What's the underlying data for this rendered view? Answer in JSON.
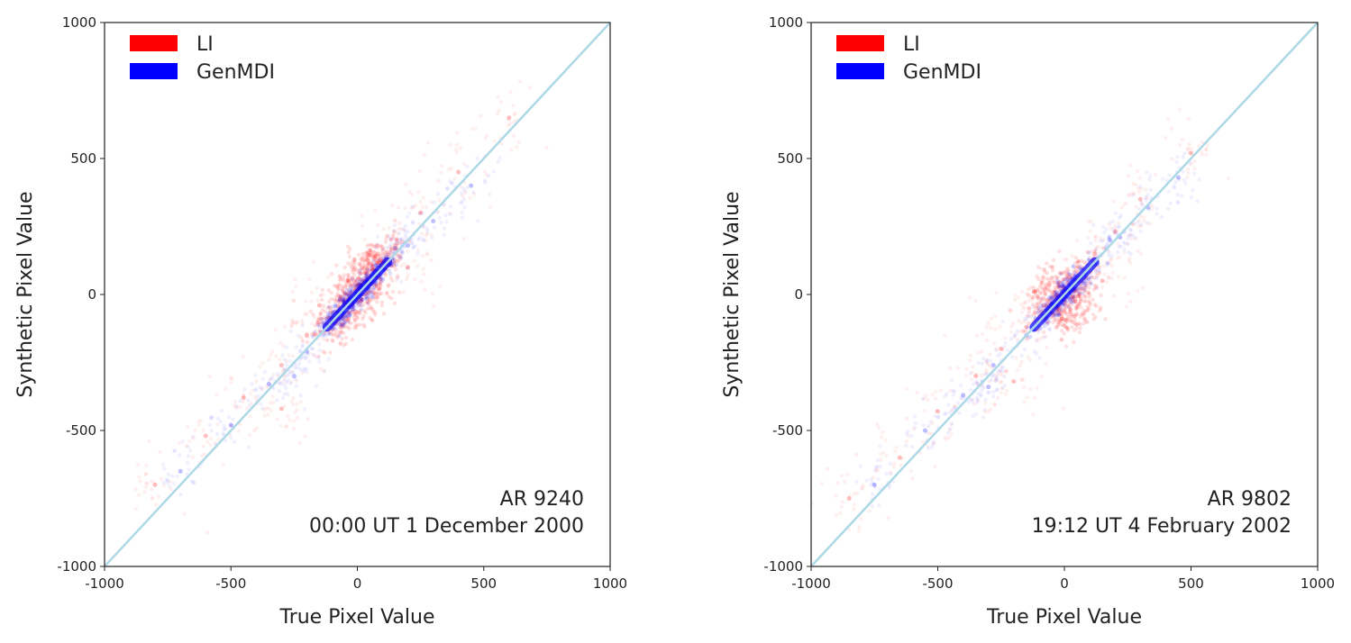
{
  "chart_data": [
    {
      "type": "scatter",
      "xlabel": "True Pixel Value",
      "ylabel": "Synthetic Pixel Value",
      "xlim": [
        -1000,
        1000
      ],
      "ylim": [
        -1000,
        1000
      ],
      "xticks": [
        "-1000",
        "-500",
        "0",
        "500",
        "1000"
      ],
      "yticks": [
        "-1000",
        "-500",
        "0",
        "500",
        "1000"
      ],
      "grid": false,
      "legend_position": "top-left",
      "annotation": [
        "AR 9240",
        "00:00 UT 1 December 2000"
      ],
      "reference_line": {
        "from": [
          -1000,
          -1000
        ],
        "to": [
          1000,
          1000
        ],
        "color": "#add8e6"
      },
      "series": [
        {
          "name": "LI",
          "color": "#ff0000",
          "points": [
            [
              -800,
              -700
            ],
            [
              -600,
              -520
            ],
            [
              -450,
              -380
            ],
            [
              -300,
              -260
            ],
            [
              -200,
              -150
            ],
            [
              -100,
              -90
            ],
            [
              -50,
              -30
            ],
            [
              0,
              10
            ],
            [
              30,
              50
            ],
            [
              60,
              90
            ],
            [
              100,
              120
            ],
            [
              150,
              180
            ],
            [
              250,
              300
            ],
            [
              400,
              450
            ],
            [
              600,
              650
            ],
            [
              -300,
              -420
            ],
            [
              200,
              100
            ],
            [
              -150,
              -40
            ],
            [
              50,
              -20
            ],
            [
              -20,
              60
            ],
            [
              -60,
              -110
            ],
            [
              80,
              150
            ]
          ]
        },
        {
          "name": "GenMDI",
          "color": "#0000ff",
          "points": [
            [
              -700,
              -650
            ],
            [
              -500,
              -480
            ],
            [
              -350,
              -330
            ],
            [
              -200,
              -210
            ],
            [
              -100,
              -100
            ],
            [
              -40,
              -45
            ],
            [
              0,
              0
            ],
            [
              40,
              45
            ],
            [
              100,
              90
            ],
            [
              200,
              180
            ],
            [
              300,
              270
            ],
            [
              450,
              400
            ],
            [
              -250,
              -300
            ],
            [
              150,
              170
            ],
            [
              20,
              25
            ],
            [
              -20,
              -20
            ]
          ]
        }
      ]
    },
    {
      "type": "scatter",
      "xlabel": "True Pixel Value",
      "ylabel": "Synthetic Pixel Value",
      "xlim": [
        -1000,
        1000
      ],
      "ylim": [
        -1000,
        1000
      ],
      "xticks": [
        "-1000",
        "-500",
        "0",
        "500",
        "1000"
      ],
      "yticks": [
        "-1000",
        "-500",
        "0",
        "500",
        "1000"
      ],
      "grid": false,
      "legend_position": "top-left",
      "annotation": [
        "AR 9802",
        "19:12 UT 4 February 2002"
      ],
      "reference_line": {
        "from": [
          -1000,
          -1000
        ],
        "to": [
          1000,
          1000
        ],
        "color": "#add8e6"
      },
      "series": [
        {
          "name": "LI",
          "color": "#ff0000",
          "points": [
            [
              -850,
              -750
            ],
            [
              -650,
              -600
            ],
            [
              -500,
              -430
            ],
            [
              -350,
              -300
            ],
            [
              -250,
              -200
            ],
            [
              -150,
              -120
            ],
            [
              -80,
              -40
            ],
            [
              -30,
              -60
            ],
            [
              0,
              20
            ],
            [
              30,
              -10
            ],
            [
              60,
              60
            ],
            [
              120,
              150
            ],
            [
              200,
              230
            ],
            [
              300,
              350
            ],
            [
              500,
              520
            ],
            [
              -200,
              -320
            ],
            [
              150,
              50
            ],
            [
              -120,
              10
            ],
            [
              40,
              -80
            ],
            [
              -60,
              40
            ]
          ]
        },
        {
          "name": "GenMDI",
          "color": "#0000ff",
          "points": [
            [
              -750,
              -700
            ],
            [
              -550,
              -500
            ],
            [
              -400,
              -370
            ],
            [
              -280,
              -260
            ],
            [
              -150,
              -150
            ],
            [
              -60,
              -60
            ],
            [
              0,
              0
            ],
            [
              50,
              50
            ],
            [
              120,
              110
            ],
            [
              220,
              210
            ],
            [
              330,
              320
            ],
            [
              450,
              430
            ],
            [
              -300,
              -340
            ],
            [
              180,
              200
            ],
            [
              -20,
              -20
            ],
            [
              20,
              15
            ]
          ]
        }
      ]
    }
  ]
}
